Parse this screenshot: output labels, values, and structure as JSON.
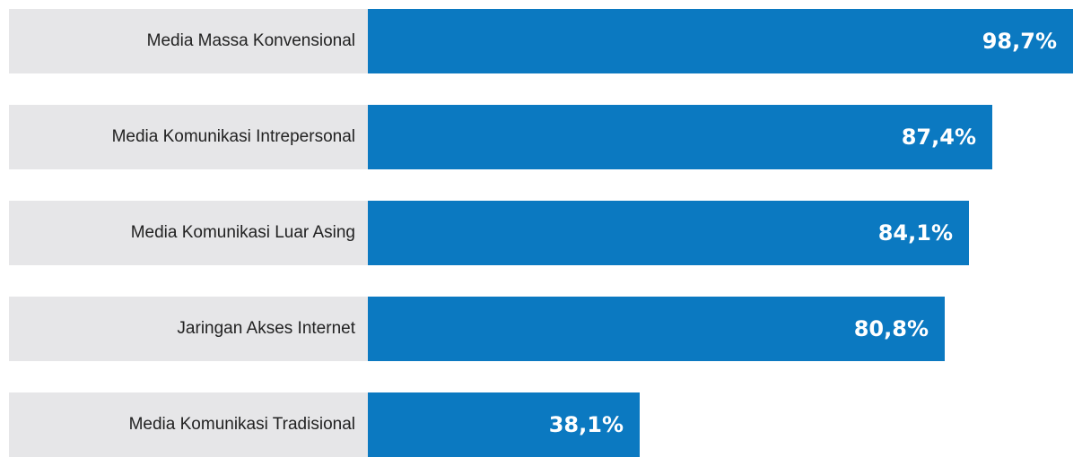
{
  "chart_data": {
    "type": "bar",
    "orientation": "horizontal",
    "categories": [
      "Media Massa Konvensional",
      "Media Komunikasi Intrepersonal",
      "Media Komunikasi Luar Asing",
      "Jaringan Akses Internet",
      "Media Komunikasi Tradisional"
    ],
    "values": [
      98.7,
      87.4,
      84.1,
      80.8,
      38.1
    ],
    "value_labels": [
      "98,7%",
      "87,4%",
      "84,1%",
      "80,8%",
      "38,1%"
    ],
    "title": "",
    "xlabel": "",
    "ylabel": "",
    "xlim": [
      0,
      100
    ],
    "grid": false,
    "legend": "none",
    "colors": {
      "bar": "#0b79c1",
      "label_background": "#e6e6e8",
      "label_text": "#222222",
      "value_text": "#ffffff"
    }
  }
}
